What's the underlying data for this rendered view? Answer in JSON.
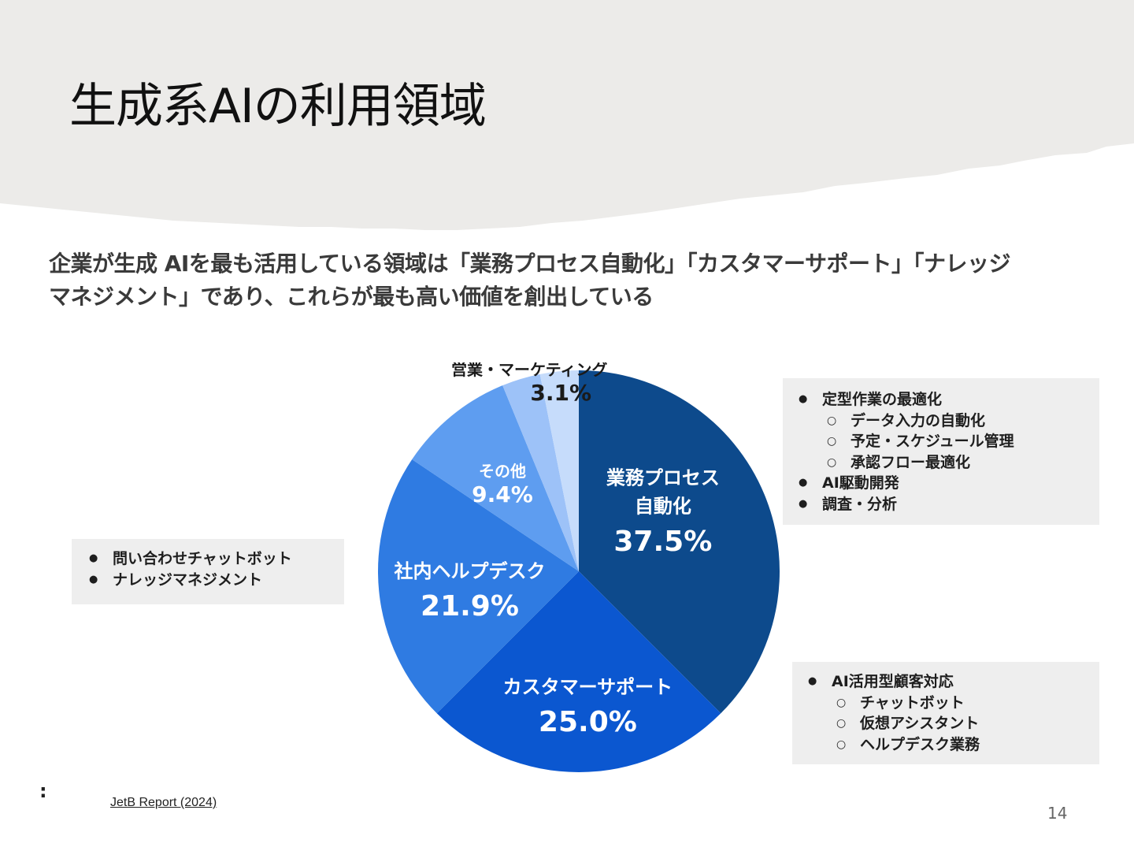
{
  "slide": {
    "title": "生成系AIの利用領域",
    "subtitle_line1": "企業が生成 AIを最も活用している領域は「業務プロセス自動化」「カスタマーサポート」「ナレッジ",
    "subtitle_line2": "マネジメント」であり、これらが最も高い価値を創出している",
    "source_colon": ":",
    "source": "JetB Report (2024)",
    "page_number": "14"
  },
  "colors": {
    "band": "#ecebe9",
    "slice_process": "#0d4a8c",
    "slice_customer": "#0b57d0",
    "slice_helpdesk": "#2f7be2",
    "slice_other": "#5e9df0",
    "slice_sales": "#9dc2f8",
    "slice_sales_light": "#c6dcfb"
  },
  "chart_data": {
    "type": "pie",
    "title": "",
    "slices": [
      {
        "label_lines": [
          "業務プロセス",
          "自動化"
        ],
        "value": 37.5,
        "value_text": "37.5%",
        "color": "#0d4a8c",
        "label_color": "#ffffff"
      },
      {
        "label_lines": [
          "カスタマーサポート"
        ],
        "value": 25.0,
        "value_text": "25.0%",
        "color": "#0b57d0",
        "label_color": "#ffffff"
      },
      {
        "label_lines": [
          "社内ヘルプデスク"
        ],
        "value": 21.9,
        "value_text": "21.9%",
        "color": "#2f7be2",
        "label_color": "#ffffff"
      },
      {
        "label_lines": [
          "その他"
        ],
        "value": 9.4,
        "value_text": "9.4%",
        "color": "#5e9df0",
        "label_color": "#ffffff"
      },
      {
        "label_lines": [
          "営業・マーケティング"
        ],
        "value": 3.1,
        "value_text": "3.1%",
        "color": "#9dc2f8",
        "label_color": "#1a1a1a"
      },
      {
        "label_lines": [],
        "value": 3.1,
        "value_text": "",
        "color": "#c6dcfb",
        "label_color": "#1a1a1a"
      }
    ]
  },
  "callouts": {
    "process": [
      {
        "level": 1,
        "text": "定型作業の最適化"
      },
      {
        "level": 2,
        "text": "データ入力の自動化"
      },
      {
        "level": 2,
        "text": "予定・スケジュール管理"
      },
      {
        "level": 2,
        "text": "承認フロー最適化"
      },
      {
        "level": 1,
        "text": "AI駆動開発"
      },
      {
        "level": 1,
        "text": "調査・分析"
      }
    ],
    "helpdesk": [
      {
        "level": 1,
        "text": "問い合わせチャットボット"
      },
      {
        "level": 1,
        "text": "ナレッジマネジメント"
      }
    ],
    "customer": [
      {
        "level": 1,
        "text": "AI活用型顧客対応"
      },
      {
        "level": 2,
        "text": "チャットボット"
      },
      {
        "level": 2,
        "text": "仮想アシスタント"
      },
      {
        "level": 2,
        "text": "ヘルプデスク業務"
      }
    ]
  }
}
